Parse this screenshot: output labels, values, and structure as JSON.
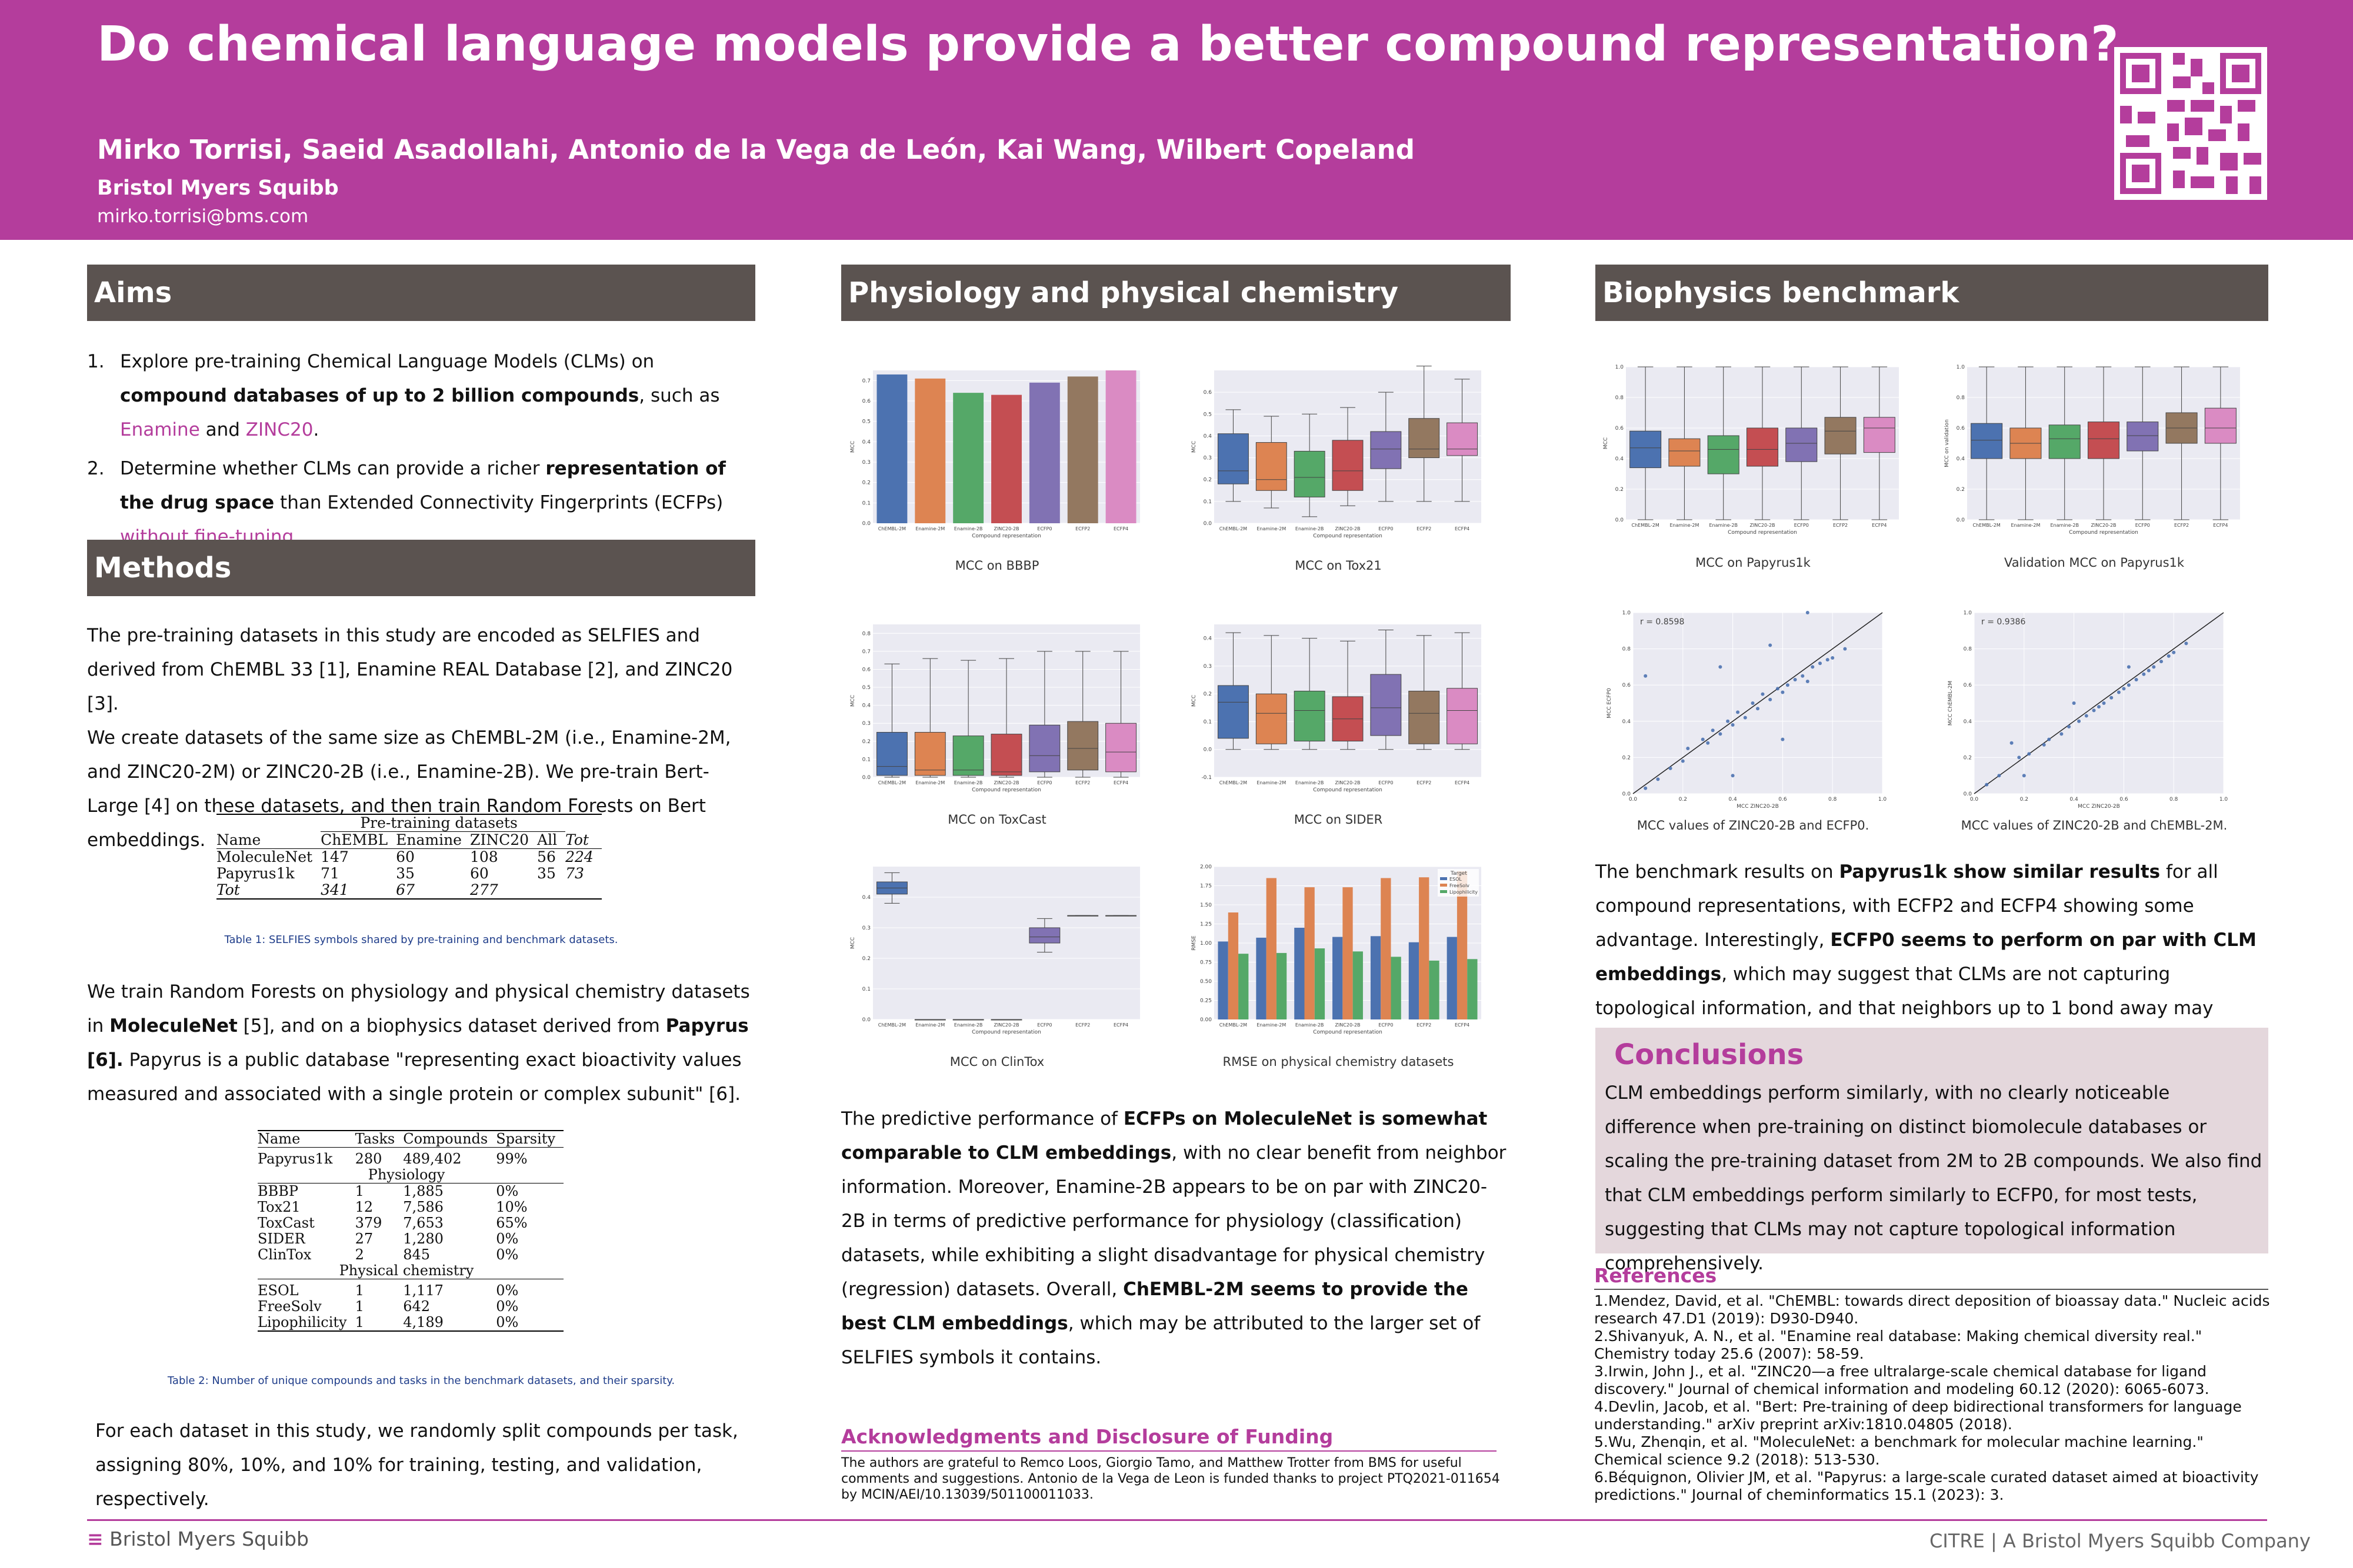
{
  "header": {
    "title": "Do chemical language models provide a better compound representation?",
    "authors": "Mirko Torrisi, Saeid Asadollahi, Antonio de la Vega de León, Kai Wang, Wilbert Copeland",
    "affiliation": "Bristol Myers Squibb",
    "email": "mirko.torrisi@bms.com",
    "qr_icon": "qr-code-icon"
  },
  "colors": {
    "accent": "#b43d9c",
    "section": "#5b5350",
    "conclusions_bg": "#e4d7dc"
  },
  "aims": {
    "heading": "Aims",
    "item1": {
      "num": "1.",
      "a": "Explore pre-training Chemical Language Models (CLMs) on ",
      "b": "compound databases of up to 2 billion compounds",
      "c": ", such as ",
      "d": "Enamine",
      "e": " and ",
      "f": "ZINC20",
      "g": "."
    },
    "item2": {
      "num": "2.",
      "a": "Determine whether CLMs can provide a richer ",
      "b": "representation of the drug space",
      "c": " than Extended Connectivity Fingerprints (ECFPs) ",
      "d": "without fine-tuning",
      "e": "."
    }
  },
  "methods": {
    "heading": "Methods",
    "p1": "The pre-training datasets in this study are encoded as SELFIES and derived from ChEMBL 33 [1], Enamine REAL Database [2], and ZINC20 [3].",
    "p2": "We create datasets of the same size as ChEMBL-2M (i.e., Enamine-2M, and ZINC20-2M) or ZINC20-2B (i.e., Enamine-2B). We pre-train Bert-Large [4] on these datasets, and then train Random Forests on Bert embeddings.",
    "table1": {
      "group_header": "Pre-training datasets",
      "headers": [
        "Name",
        "ChEMBL",
        "Enamine",
        "ZINC20",
        "All",
        "Tot"
      ],
      "rows": [
        [
          "MoleculeNet",
          "147",
          "60",
          "108",
          "56",
          "224"
        ],
        [
          "Papyrus1k",
          "71",
          "35",
          "60",
          "35",
          "73"
        ],
        [
          "Tot",
          "341",
          "67",
          "277",
          "",
          ""
        ]
      ],
      "caption": "Table 1: SELFIES symbols shared by pre-training and benchmark datasets."
    },
    "p3a": "We train Random Forests on physiology and physical chemistry datasets in ",
    "p3b": "MoleculeNet",
    "p3c": " [5], and on a biophysics dataset derived from ",
    "p3d": "Papyrus [6].",
    "p3e": " Papyrus is a public database \"representing exact bioactivity values measured and associated with a single protein or complex subunit\" [6].",
    "table2": {
      "headers": [
        "Name",
        "Tasks",
        "Compounds",
        "Sparsity"
      ],
      "papyrus": [
        "Papyrus1k",
        "280",
        "489,402",
        "99%"
      ],
      "group1": "Physiology",
      "physiology": [
        [
          "BBBP",
          "1",
          "1,885",
          "0%"
        ],
        [
          "Tox21",
          "12",
          "7,586",
          "10%"
        ],
        [
          "ToxCast",
          "379",
          "7,653",
          "65%"
        ],
        [
          "SIDER",
          "27",
          "1,280",
          "0%"
        ],
        [
          "ClinTox",
          "2",
          "845",
          "0%"
        ]
      ],
      "group2": "Physical chemistry",
      "physchem": [
        [
          "ESOL",
          "1",
          "1,117",
          "0%"
        ],
        [
          "FreeSolv",
          "1",
          "642",
          "0%"
        ],
        [
          "Lipophilicity",
          "1",
          "4,189",
          "0%"
        ]
      ],
      "caption": "Table 2: Number of unique compounds and tasks in the benchmark datasets, and their sparsity."
    },
    "p4": "For each dataset in this study, we randomly split compounds per task, assigning 80%, 10%, and 10% for training, testing, and validation, respectively."
  },
  "physio": {
    "heading": "Physiology and physical chemistry benchmark",
    "fig_labels": [
      "MCC on BBBP",
      "MCC on Tox21",
      "MCC on ToxCast",
      "MCC on SIDER",
      "MCC on ClinTox",
      "RMSE on physical chemistry datasets"
    ],
    "text": {
      "a": "The predictive performance of ",
      "b": "ECFPs on MoleculeNet is somewhat comparable to CLM embeddings",
      "c": ", with no clear benefit from neighbor information. Moreover, Enamine-2B appears to be on par with ZINC20-2B in terms of predictive performance for physiology (classification) datasets, while exhibiting a slight disadvantage for physical chemistry (regression) datasets. Overall, ",
      "d": "ChEMBL-2M seems to provide the best CLM embeddings",
      "e": ", which may be attributed to the larger set of SELFIES symbols it contains."
    }
  },
  "ack": {
    "heading": "Acknowledgments and Disclosure of Funding",
    "text": "The authors are grateful to Remco Loos, Giorgio Tamo, and Matthew Trotter from BMS for useful comments and suggestions. Antonio de la Vega de Leon is funded thanks to project PTQ2021-011654 by MCIN/AEI/10.13039/501100011033."
  },
  "bio": {
    "heading": "Biophysics benchmark",
    "fig_labels": [
      "MCC on Papyrus1k",
      "Validation MCC on Papyrus1k",
      "MCC values of ZINC20-2B and ECFP0.",
      "MCC values of ZINC20-2B and ChEMBL-2M."
    ],
    "r1": "r = 0.8598",
    "r2": "r = 0.9386",
    "text": {
      "a": "The benchmark results on ",
      "b": "Papyrus1k show similar results",
      "c": " for all compound representations, with ECFP2 and ECFP4 showing some advantage. Interestingly, ",
      "d": "ECFP0 seems to perform on par with CLM embeddings",
      "e": ", which may suggest that CLMs are not capturing topological information, and that neighbors up to 1 bond away may provide sufficient biophysics information."
    }
  },
  "conclusions": {
    "heading": "Conclusions",
    "text": "CLM embeddings perform similarly, with no clearly noticeable difference when pre-training on distinct biomolecule databases or scaling the pre-training dataset from 2M to 2B compounds. We also find that CLM embeddings perform similarly to ECFP0, for most tests, suggesting that CLMs may not capture topological information comprehensively."
  },
  "references": {
    "heading": "References",
    "items": [
      "1.Mendez, David, et al. \"ChEMBL: towards direct deposition of bioassay data.\" Nucleic acids research 47.D1 (2019): D930-D940.",
      "2.Shivanyuk, A. N., et al. \"Enamine real database: Making chemical diversity real.\" Chemistry today 25.6 (2007): 58-59.",
      "3.Irwin, John J., et al. \"ZINC20—a free ultralarge-scale chemical database for ligand discovery.\" Journal of chemical information and modeling 60.12 (2020): 6065-6073.",
      "4.Devlin, Jacob, et al. \"Bert: Pre-training of deep bidirectional transformers for language understanding.\" arXiv preprint arXiv:1810.04805 (2018).",
      "5.Wu, Zhenqin, et al. \"MoleculeNet: a benchmark for molecular machine learning.\" Chemical science 9.2 (2018): 513-530.",
      "6.Béquignon, Olivier JM, et al. \"Papyrus: a large-scale curated dataset aimed at bioactivity predictions.\" Journal of cheminformatics 15.1 (2023): 3."
    ]
  },
  "footer": {
    "left_logo": "Bristol Myers Squibb",
    "right_logo_a": "CITRE",
    "right_logo_b": "A Bristol Myers Squibb Company"
  },
  "chart_data": [
    {
      "type": "bar",
      "title": "MCC on BBBP",
      "xlabel": "Compound representation",
      "ylabel": "MCC",
      "categories": [
        "ChEMBL-2M",
        "Enamine-2M",
        "Enamine-2B",
        "ZINC20-2B",
        "ECFP0",
        "ECFP2",
        "ECFP4"
      ],
      "values": [
        0.73,
        0.71,
        0.64,
        0.63,
        0.69,
        0.72,
        0.75
      ],
      "ylim": [
        0,
        0.75
      ],
      "yticks": [
        "0.0",
        "0.1",
        "0.2",
        "0.3",
        "0.4",
        "0.5",
        "0.6",
        "0.7"
      ]
    },
    {
      "type": "box",
      "title": "MCC on Tox21",
      "xlabel": "Compound representation",
      "ylabel": "MCC",
      "categories": [
        "ChEMBL-2M",
        "Enamine-2M",
        "Enamine-2B",
        "ZINC20-2B",
        "ECFP0",
        "ECFP2",
        "ECFP4"
      ],
      "boxes": [
        [
          0.1,
          0.18,
          0.24,
          0.41,
          0.52
        ],
        [
          0.07,
          0.15,
          0.2,
          0.37,
          0.49
        ],
        [
          0.03,
          0.12,
          0.21,
          0.33,
          0.5
        ],
        [
          0.08,
          0.15,
          0.24,
          0.38,
          0.53
        ],
        [
          0.1,
          0.25,
          0.34,
          0.42,
          0.6
        ],
        [
          0.1,
          0.3,
          0.34,
          0.48,
          0.72
        ],
        [
          0.1,
          0.31,
          0.34,
          0.46,
          0.66
        ]
      ],
      "ylim": [
        0,
        0.7
      ],
      "yticks": [
        "0.0",
        "0.1",
        "0.2",
        "0.3",
        "0.4",
        "0.5",
        "0.6"
      ]
    },
    {
      "type": "box",
      "title": "MCC on ToxCast",
      "xlabel": "Compound representation",
      "ylabel": "MCC",
      "categories": [
        "ChEMBL-2M",
        "Enamine-2M",
        "Enamine-2B",
        "ZINC20-2B",
        "ECFP0",
        "ECFP2",
        "ECFP4"
      ],
      "boxes": [
        [
          0.0,
          0.01,
          0.06,
          0.25,
          0.63
        ],
        [
          0.0,
          0.01,
          0.04,
          0.25,
          0.66
        ],
        [
          0.0,
          0.01,
          0.04,
          0.23,
          0.65
        ],
        [
          0.0,
          0.01,
          0.03,
          0.24,
          0.66
        ],
        [
          0.0,
          0.03,
          0.12,
          0.29,
          0.7
        ],
        [
          0.0,
          0.04,
          0.16,
          0.31,
          0.7
        ],
        [
          0.0,
          0.03,
          0.14,
          0.3,
          0.7
        ]
      ],
      "ylim": [
        0,
        0.85
      ],
      "yticks": [
        "0.0",
        "0.1",
        "0.2",
        "0.3",
        "0.4",
        "0.5",
        "0.6",
        "0.7",
        "0.8"
      ]
    },
    {
      "type": "box",
      "title": "MCC on SIDER",
      "xlabel": "Compound representation",
      "ylabel": "MCC",
      "categories": [
        "ChEMBL-2M",
        "Enamine-2M",
        "Enamine-2B",
        "ZINC20-2B",
        "ECFP0",
        "ECFP2",
        "ECFP4"
      ],
      "boxes": [
        [
          0.0,
          0.04,
          0.17,
          0.23,
          0.42
        ],
        [
          0.0,
          0.02,
          0.13,
          0.2,
          0.41
        ],
        [
          0.0,
          0.03,
          0.14,
          0.21,
          0.4
        ],
        [
          0.0,
          0.03,
          0.11,
          0.19,
          0.39
        ],
        [
          0.0,
          0.05,
          0.15,
          0.27,
          0.43
        ],
        [
          0.0,
          0.02,
          0.13,
          0.21,
          0.41
        ],
        [
          0.0,
          0.02,
          0.14,
          0.22,
          0.42
        ]
      ],
      "ylim": [
        -0.1,
        0.45
      ],
      "yticks": [
        "-0.1",
        "0.0",
        "0.1",
        "0.2",
        "0.3",
        "0.4"
      ]
    },
    {
      "type": "box",
      "title": "MCC on ClinTox",
      "xlabel": "Compound representation",
      "ylabel": "MCC",
      "categories": [
        "ChEMBL-2M",
        "Enamine-2M",
        "Enamine-2B",
        "ZINC20-2B",
        "ECFP0",
        "ECFP2",
        "ECFP4"
      ],
      "boxes": [
        [
          0.38,
          0.41,
          0.43,
          0.45,
          0.48
        ],
        [
          0,
          0,
          0,
          0,
          0
        ],
        [
          0,
          0,
          0,
          0,
          0
        ],
        [
          0,
          0,
          0,
          0,
          0
        ],
        [
          0.22,
          0.25,
          0.27,
          0.3,
          0.33
        ],
        [
          0.34,
          0.34,
          0.34,
          0.34,
          0.34
        ],
        [
          0.34,
          0.34,
          0.34,
          0.34,
          0.34
        ]
      ],
      "ylim": [
        0,
        0.5
      ],
      "yticks": [
        "0.0",
        "0.1",
        "0.2",
        "0.3",
        "0.4"
      ]
    },
    {
      "type": "bar",
      "title": "RMSE on physical chemistry datasets",
      "xlabel": "Compound representation",
      "ylabel": "RMSE",
      "categories": [
        "ChEMBL-2M",
        "Enamine-2M",
        "Enamine-2B",
        "ZINC20-2B",
        "ECFP0",
        "ECFP2",
        "ECFP4"
      ],
      "legend_title": "Target",
      "legend_position": "top-right",
      "series": [
        {
          "name": "ESOL",
          "color": "#4c72b0",
          "values": [
            1.02,
            1.07,
            1.2,
            1.08,
            1.09,
            1.01,
            1.08
          ]
        },
        {
          "name": "FreeSolv",
          "color": "#dd8452",
          "values": [
            1.4,
            1.85,
            1.73,
            1.73,
            1.85,
            1.86,
            1.94
          ]
        },
        {
          "name": "Lipophilicity",
          "color": "#55a868",
          "values": [
            0.86,
            0.87,
            0.93,
            0.89,
            0.82,
            0.77,
            0.79
          ]
        }
      ],
      "ylim": [
        0,
        2.0
      ],
      "yticks": [
        "0.00",
        "0.25",
        "0.50",
        "0.75",
        "1.00",
        "1.25",
        "1.50",
        "1.75",
        "2.00"
      ]
    },
    {
      "type": "box",
      "title": "MCC on Papyrus1k",
      "xlabel": "Compound representation",
      "ylabel": "MCC",
      "categories": [
        "ChEMBL-2M",
        "Enamine-2M",
        "Enamine-2B",
        "ZINC20-2B",
        "ECFP0",
        "ECFP2",
        "ECFP4"
      ],
      "boxes": [
        [
          0.0,
          0.34,
          0.47,
          0.58,
          1.0
        ],
        [
          0.0,
          0.35,
          0.45,
          0.53,
          1.0
        ],
        [
          0.0,
          0.3,
          0.46,
          0.55,
          1.0
        ],
        [
          0.0,
          0.35,
          0.46,
          0.6,
          1.0
        ],
        [
          0.0,
          0.38,
          0.5,
          0.6,
          1.0
        ],
        [
          0.0,
          0.43,
          0.58,
          0.67,
          1.0
        ],
        [
          0.0,
          0.44,
          0.6,
          0.67,
          1.0
        ]
      ],
      "ylim": [
        0,
        1.0
      ],
      "yticks": [
        "0.0",
        "0.2",
        "0.4",
        "0.6",
        "0.8",
        "1.0"
      ]
    },
    {
      "type": "box",
      "title": "Validation MCC on Papyrus1k",
      "xlabel": "Compound representation",
      "ylabel": "MCC on validation",
      "categories": [
        "ChEMBL-2M",
        "Enamine-2M",
        "Enamine-2B",
        "ZINC20-2B",
        "ECFP0",
        "ECFP2",
        "ECFP4"
      ],
      "boxes": [
        [
          0.0,
          0.4,
          0.52,
          0.63,
          1.0
        ],
        [
          0.0,
          0.4,
          0.5,
          0.6,
          1.0
        ],
        [
          0.0,
          0.4,
          0.53,
          0.62,
          1.0
        ],
        [
          0.0,
          0.4,
          0.53,
          0.64,
          1.0
        ],
        [
          0.0,
          0.45,
          0.55,
          0.64,
          1.0
        ],
        [
          0.0,
          0.5,
          0.6,
          0.7,
          1.0
        ],
        [
          0.0,
          0.5,
          0.6,
          0.73,
          1.0
        ]
      ],
      "ylim": [
        0,
        1.0
      ],
      "yticks": [
        "0.0",
        "0.2",
        "0.4",
        "0.6",
        "0.8",
        "1.0"
      ]
    },
    {
      "type": "scatter",
      "title": "MCC values of ZINC20-2B and ECFP0.",
      "xlabel": "MCC ZINC20-2B",
      "ylabel": "MCC ECFP0",
      "annotation": "r = 0.8598",
      "xlim": [
        0,
        1.0
      ],
      "ylim": [
        0,
        1.0
      ],
      "x": [
        0.05,
        0.1,
        0.15,
        0.2,
        0.22,
        0.28,
        0.3,
        0.32,
        0.35,
        0.38,
        0.4,
        0.42,
        0.45,
        0.48,
        0.5,
        0.52,
        0.55,
        0.58,
        0.6,
        0.62,
        0.65,
        0.68,
        0.7,
        0.72,
        0.75,
        0.78,
        0.8,
        0.85,
        0.05,
        0.35,
        0.4,
        0.55,
        0.6,
        0.7
      ],
      "y": [
        0.03,
        0.08,
        0.14,
        0.18,
        0.25,
        0.3,
        0.28,
        0.35,
        0.33,
        0.4,
        0.38,
        0.45,
        0.42,
        0.5,
        0.47,
        0.55,
        0.52,
        0.58,
        0.56,
        0.6,
        0.63,
        0.65,
        0.62,
        0.7,
        0.72,
        0.74,
        0.75,
        0.8,
        0.65,
        0.7,
        0.1,
        0.82,
        0.3,
        1.0
      ]
    },
    {
      "type": "scatter",
      "title": "MCC values of ZINC20-2B and ChEMBL-2M.",
      "xlabel": "MCC ZINC20-2B",
      "ylabel": "MCC ChEMBL-2M",
      "annotation": "r = 0.9386",
      "xlim": [
        0,
        1.0
      ],
      "ylim": [
        0,
        1.0
      ],
      "x": [
        0.05,
        0.1,
        0.18,
        0.22,
        0.28,
        0.3,
        0.35,
        0.38,
        0.42,
        0.45,
        0.48,
        0.5,
        0.52,
        0.55,
        0.58,
        0.6,
        0.62,
        0.65,
        0.68,
        0.7,
        0.72,
        0.75,
        0.78,
        0.8,
        0.85,
        0.2,
        0.4,
        0.62,
        0.15
      ],
      "y": [
        0.05,
        0.1,
        0.2,
        0.22,
        0.27,
        0.3,
        0.33,
        0.37,
        0.4,
        0.43,
        0.46,
        0.48,
        0.5,
        0.53,
        0.56,
        0.58,
        0.6,
        0.63,
        0.66,
        0.68,
        0.7,
        0.73,
        0.76,
        0.78,
        0.83,
        0.1,
        0.5,
        0.7,
        0.28
      ]
    }
  ]
}
